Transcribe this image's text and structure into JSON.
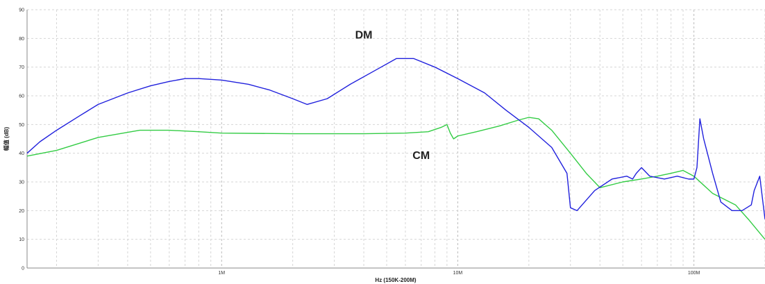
{
  "chart_data": {
    "type": "line",
    "title": "",
    "xlabel": "Hz  (150K-200M)",
    "ylabel": "幅值 (dB)",
    "x_scale": "log",
    "xlim": [
      150000,
      200000000
    ],
    "ylim": [
      0,
      90
    ],
    "yticks": [
      0,
      10,
      20,
      30,
      40,
      50,
      60,
      70,
      80,
      90
    ],
    "xticks": [
      {
        "value": 1000000,
        "label": "1M"
      },
      {
        "value": 10000000,
        "label": "10M"
      },
      {
        "value": 100000000,
        "label": "100M"
      }
    ],
    "grid": true,
    "annotations": [
      {
        "text": "DM",
        "x": 4000000,
        "y": 80
      },
      {
        "text": "CM",
        "x": 7000000,
        "y": 38
      }
    ],
    "series": [
      {
        "name": "DM",
        "color": "#2020dd",
        "x": [
          150000,
          170000,
          200000,
          250000,
          300000,
          400000,
          500000,
          600000,
          700000,
          800000,
          1000000,
          1300000,
          1600000,
          2000000,
          2300000,
          2800000,
          3500000,
          4500000,
          5500000,
          6500000,
          8000000,
          10000000,
          13000000,
          16000000,
          20000000,
          25000000,
          29000000,
          30000000,
          32000000,
          38000000,
          45000000,
          52000000,
          55000000,
          57000000,
          60000000,
          65000000,
          75000000,
          85000000,
          95000000,
          100000000,
          103000000,
          106000000,
          110000000,
          120000000,
          130000000,
          145000000,
          160000000,
          175000000,
          180000000,
          190000000,
          200000000
        ],
        "y": [
          40,
          44,
          48,
          53,
          57,
          61,
          63.5,
          65,
          66,
          66,
          65.5,
          64,
          62,
          59,
          57,
          59,
          64,
          69,
          73,
          73,
          70,
          66,
          61,
          55,
          49,
          42,
          33,
          21,
          20,
          27,
          31,
          32,
          31,
          33,
          35,
          32,
          31,
          32,
          31,
          31,
          35,
          52,
          45,
          33,
          23,
          20,
          20,
          22,
          27,
          32,
          17
        ]
      },
      {
        "name": "CM",
        "color": "#33cc44",
        "x": [
          150000,
          200000,
          300000,
          450000,
          600000,
          800000,
          1000000,
          2000000,
          4000000,
          6000000,
          7500000,
          8500000,
          9000000,
          9300000,
          9600000,
          10000000,
          12000000,
          15000000,
          18000000,
          20000000,
          22000000,
          25000000,
          30000000,
          35000000,
          40000000,
          50000000,
          60000000,
          70000000,
          80000000,
          90000000,
          100000000,
          120000000,
          150000000,
          170000000,
          200000000
        ],
        "y": [
          39,
          41,
          45.5,
          48,
          48,
          47.5,
          47,
          46.8,
          46.8,
          47,
          47.5,
          49,
          50,
          47,
          45,
          46,
          47.5,
          49.5,
          51.5,
          52.5,
          52,
          48,
          40,
          33,
          28,
          30,
          31,
          32,
          33,
          34,
          32,
          26,
          22,
          17,
          10
        ]
      }
    ]
  }
}
